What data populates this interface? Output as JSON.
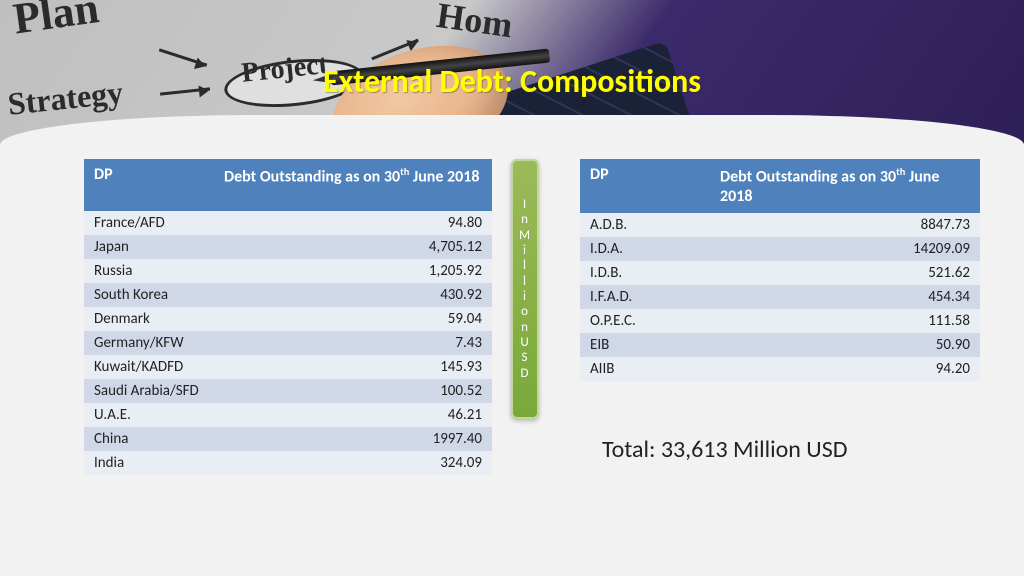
{
  "title": "External Debt: Compositions",
  "banner_words": [
    "Plan",
    "Strategy",
    "Project",
    "Hom"
  ],
  "tables": {
    "left": {
      "headers": {
        "dp": "DP",
        "debt_html": "Debt Outstanding as on 30<sup>th</sup> June 2018"
      },
      "rows": [
        {
          "dp": "France/AFD",
          "val": "94.80"
        },
        {
          "dp": "Japan",
          "val": "4,705.12"
        },
        {
          "dp": "Russia",
          "val": "1,205.92"
        },
        {
          "dp": "South Korea",
          "val": "430.92"
        },
        {
          "dp": "Denmark",
          "val": "59.04"
        },
        {
          "dp": "Germany/KFW",
          "val": "7.43"
        },
        {
          "dp": "Kuwait/KADFD",
          "val": "145.93"
        },
        {
          "dp": "Saudi Arabia/SFD",
          "val": "100.52"
        },
        {
          "dp": "U.A.E.",
          "val": "46.21"
        },
        {
          "dp": "China",
          "val": "1997.40"
        },
        {
          "dp": "India",
          "val": "324.09"
        }
      ]
    },
    "right": {
      "headers": {
        "dp": "DP",
        "debt_html": "Debt Outstanding as on 30<sup>th</sup> June 2018"
      },
      "rows": [
        {
          "dp": "A.D.B.",
          "val": "8847.73"
        },
        {
          "dp": "I.D.A.",
          "val": "14209.09"
        },
        {
          "dp": "I.D.B.",
          "val": "521.62"
        },
        {
          "dp": "I.F.A.D.",
          "val": "454.34"
        },
        {
          "dp": "O.P.E.C.",
          "val": "111.58"
        },
        {
          "dp": "EIB",
          "val": "50.90"
        },
        {
          "dp": "AIIB",
          "val": "94.20"
        }
      ]
    }
  },
  "pill_label": "I\nn\nM\ni\nl\nl\ni\no\nn\nU\nS\nD",
  "total_label": "Total: 33,613 Million USD",
  "colors": {
    "title": "#ffff00",
    "table_header_bg": "#4f81bd",
    "row_odd": "#e9edf4",
    "row_even": "#d0d8e8",
    "pill_top": "#9bbb59",
    "pill_bottom": "#79a83a",
    "page_bg": "#f2f2f2"
  },
  "fonts": {
    "title_size_pt": 24,
    "body_size_pt": 11,
    "total_size_pt": 18
  }
}
